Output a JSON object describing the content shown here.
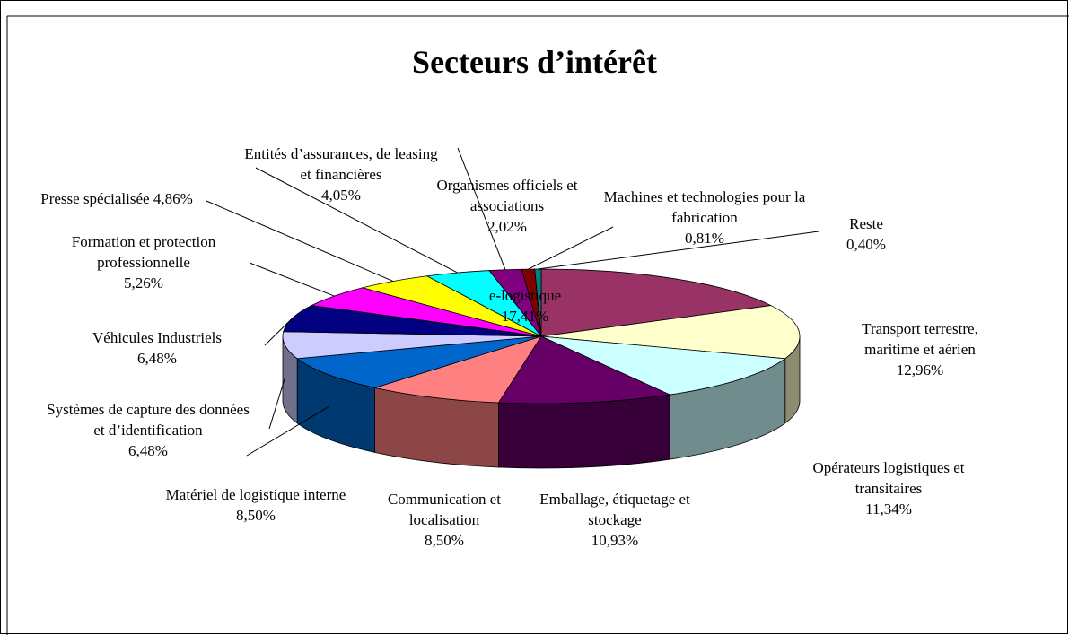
{
  "chart_data": {
    "type": "pie",
    "title": "Secteurs d’intérêt",
    "categories": [
      "e-logistique",
      "Transport terrestre, maritime et aérien",
      "Opérateurs logistiques et transitaires",
      "Emballage, étiquetage et stockage",
      "Communication et localisation",
      "Matériel de logistique interne",
      "Systèmes de capture des données et d’identification",
      "Véhicules Industriels",
      "Formation et protection professionnelle",
      "Presse spécialisée",
      "Entités d’assurances, de leasing et financières",
      "Organismes officiels et associations",
      "Machines et technologies pour la fabrication",
      "Reste"
    ],
    "values": [
      17.41,
      12.96,
      11.34,
      10.93,
      8.5,
      8.5,
      6.48,
      6.48,
      5.26,
      4.86,
      4.05,
      2.02,
      0.81,
      0.4
    ],
    "value_labels": [
      "17,41%",
      "12,96%",
      "11,34%",
      "10,93%",
      "8,50%",
      "8,50%",
      "6,48%",
      "6,48%",
      "5,26%",
      "4,86%",
      "4,05%",
      "2,02%",
      "0,81%",
      "0,40%"
    ],
    "colors": [
      "#993366",
      "#FFFFCC",
      "#CCFFFF",
      "#660066",
      "#FF8080",
      "#0066CC",
      "#CCCCFF",
      "#000080",
      "#FF00FF",
      "#FFFF00",
      "#00FFFF",
      "#800080",
      "#800000",
      "#008080"
    ]
  }
}
